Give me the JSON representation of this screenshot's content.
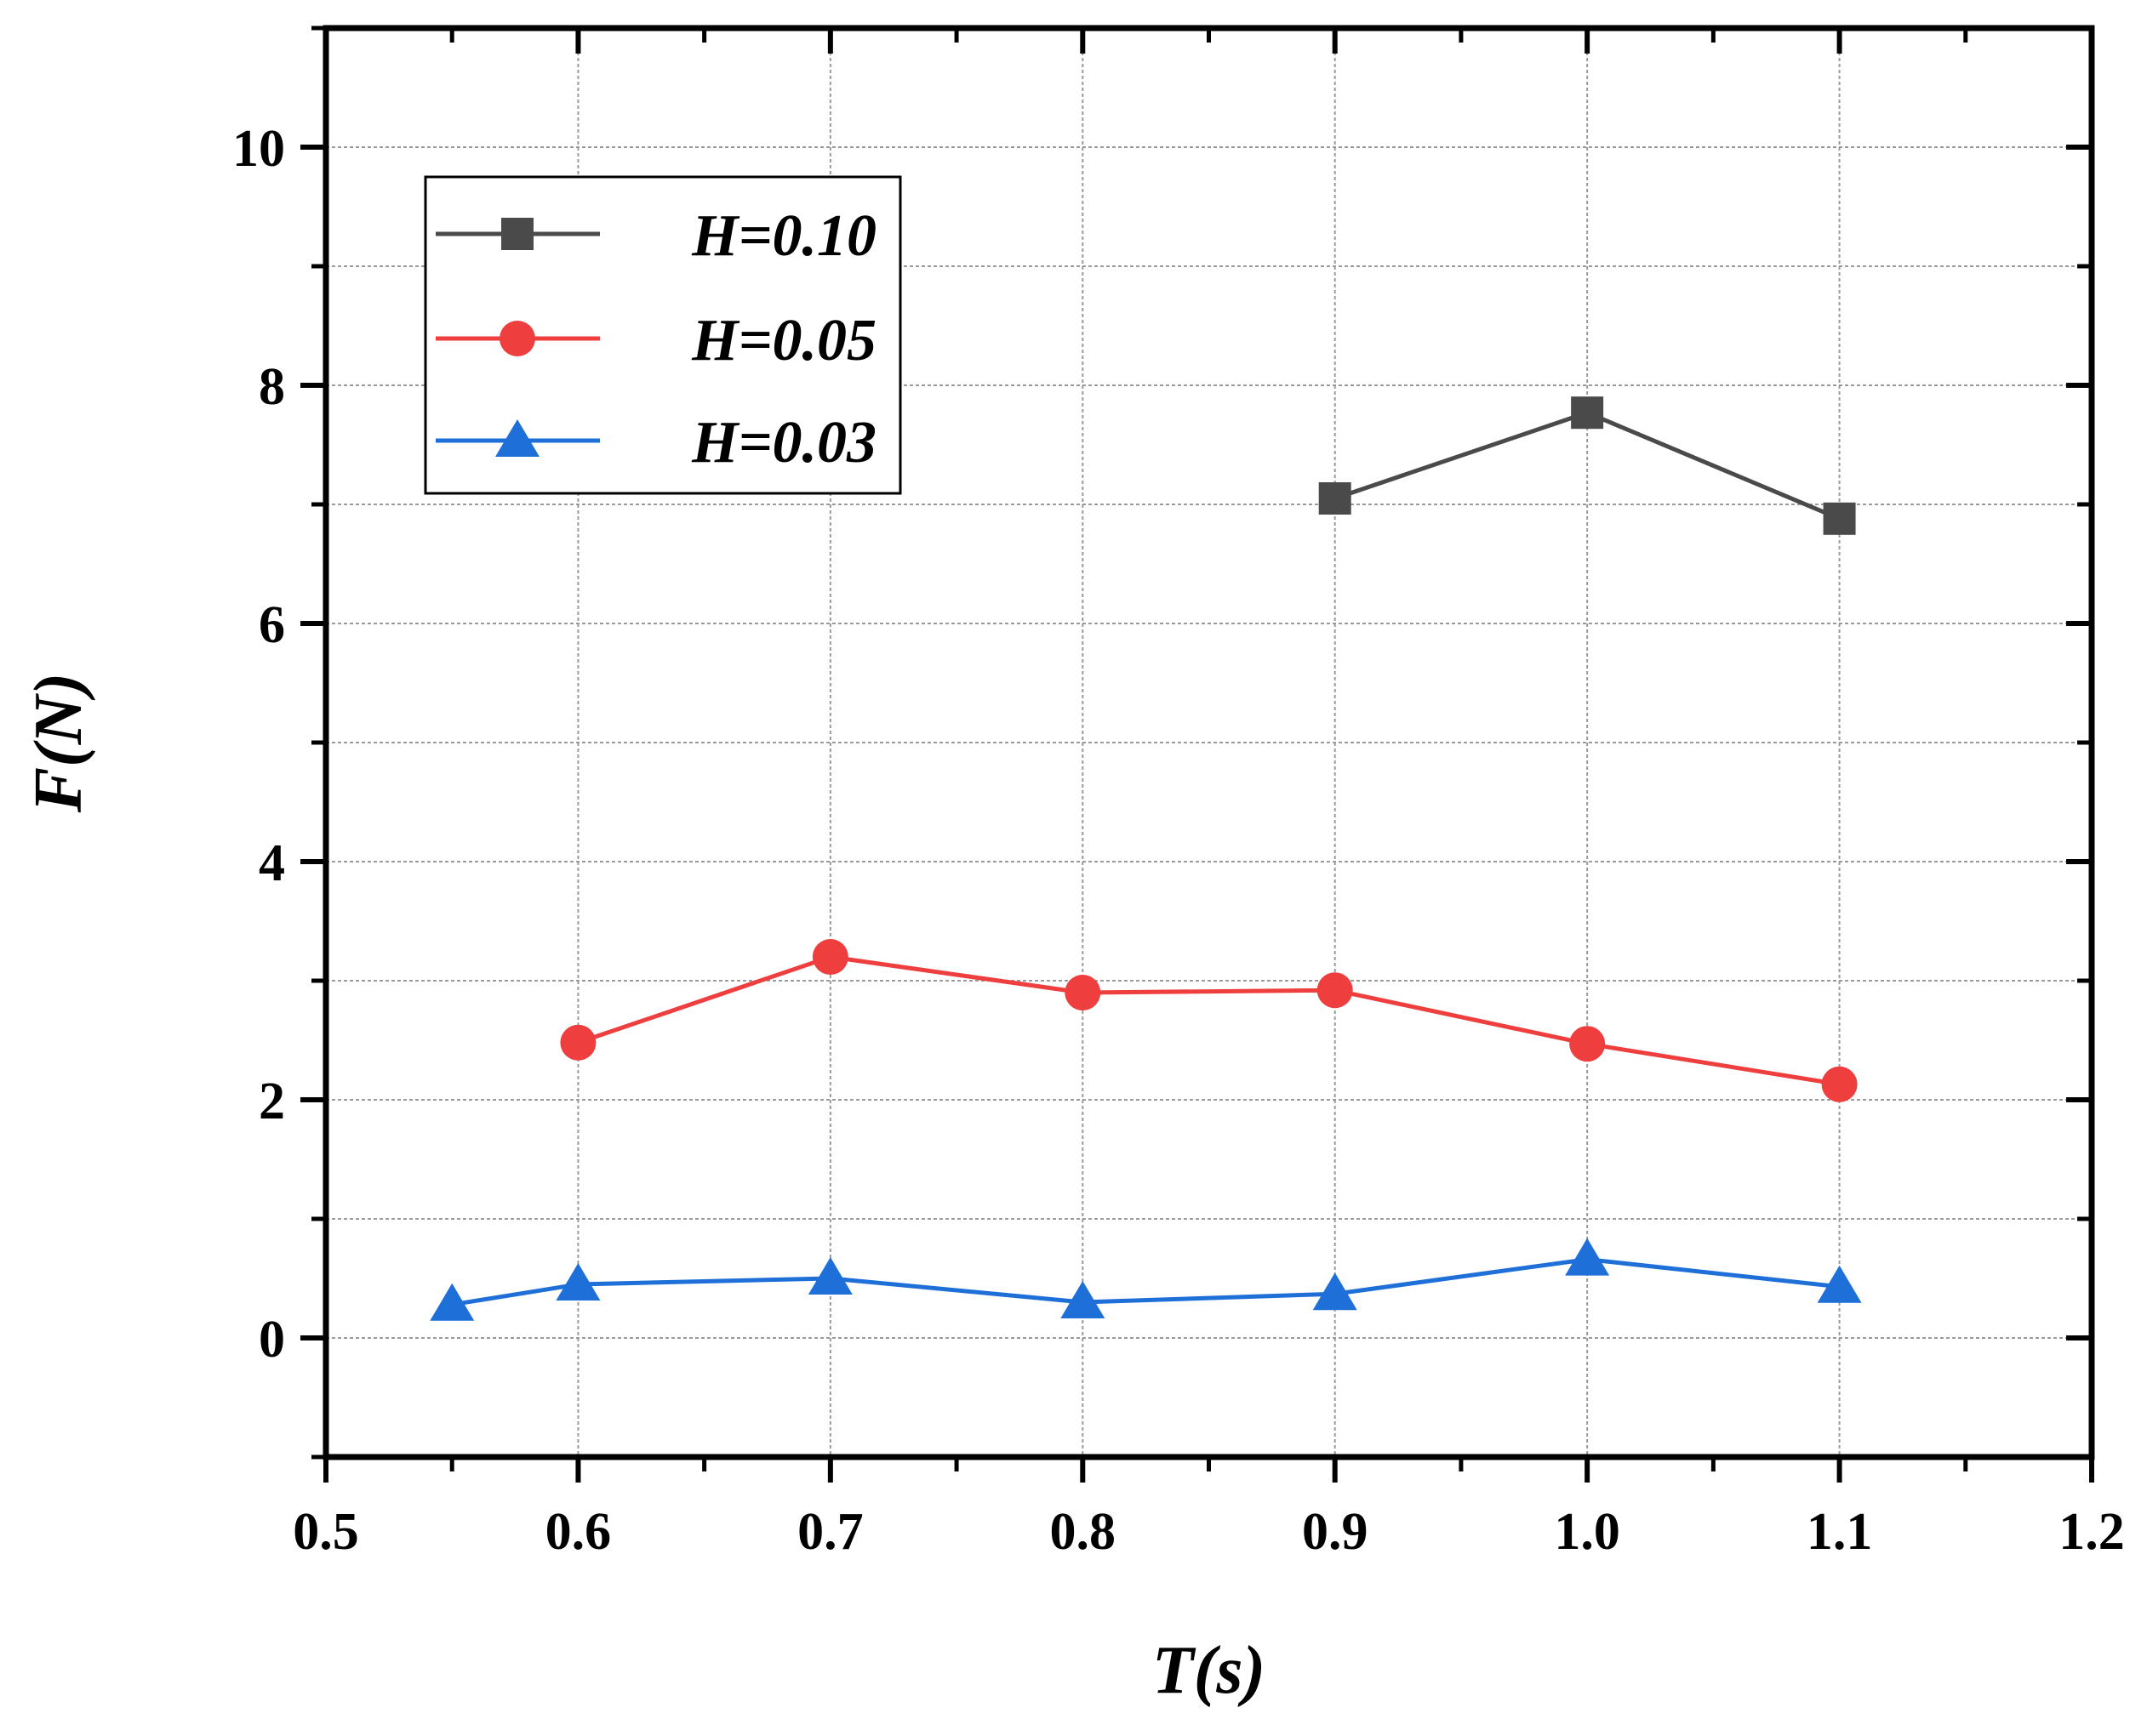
{
  "chart_data": {
    "type": "line",
    "title": "",
    "xlabel": "T(s)",
    "ylabel": "F(N)",
    "xlim": [
      0.5,
      1.2
    ],
    "ylim": [
      -1,
      11
    ],
    "xticks": [
      0.5,
      0.6,
      0.7,
      0.8,
      0.9,
      1.0,
      1.1,
      1.2
    ],
    "xtick_labels": [
      "0.5",
      "0.6",
      "0.7",
      "0.8",
      "0.9",
      "1.0",
      "1.1",
      "1.2"
    ],
    "yticks": [
      0,
      2,
      4,
      6,
      8,
      10
    ],
    "ytick_labels": [
      "0",
      "2",
      "4",
      "6",
      "8",
      "10"
    ],
    "grid": true,
    "legend_position": "top-left",
    "series": [
      {
        "name": "H=0.10",
        "marker": "square",
        "color": "#4a4a4a",
        "x": [
          0.9,
          1.0,
          1.1
        ],
        "y": [
          7.05,
          7.77,
          6.88
        ]
      },
      {
        "name": "H=0.05",
        "marker": "circle",
        "color": "#ef3e3e",
        "x": [
          0.6,
          0.7,
          0.8,
          0.9,
          1.0,
          1.1
        ],
        "y": [
          2.48,
          3.2,
          2.9,
          2.92,
          2.47,
          2.13
        ]
      },
      {
        "name": "H=0.03",
        "marker": "triangle",
        "color": "#1f6fd8",
        "x": [
          0.55,
          0.6,
          0.7,
          0.8,
          0.9,
          1.0,
          1.1
        ],
        "y": [
          0.28,
          0.45,
          0.5,
          0.3,
          0.37,
          0.66,
          0.43
        ]
      }
    ]
  }
}
